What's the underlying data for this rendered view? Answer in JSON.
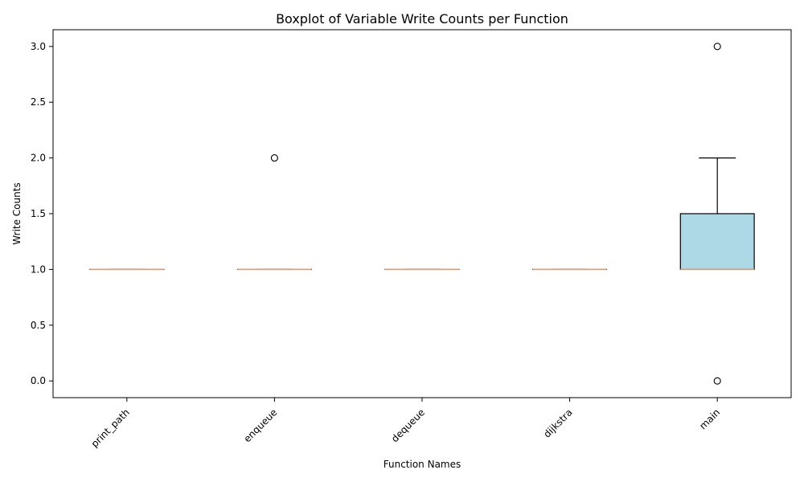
{
  "chart_data": {
    "type": "boxplot",
    "title": "Boxplot of Variable Write Counts per Function",
    "xlabel": "Function Names",
    "ylabel": "Write Counts",
    "ylim": [
      -0.15,
      3.15
    ],
    "yticks": [
      0.0,
      0.5,
      1.0,
      1.5,
      2.0,
      2.5,
      3.0
    ],
    "ytick_labels": [
      "0.0",
      "0.5",
      "1.0",
      "1.5",
      "2.0",
      "2.5",
      "3.0"
    ],
    "grid": false,
    "legend": "none",
    "box_color": "#add8e6",
    "median_color": "#e8a070",
    "edge_color": "#000000",
    "categories": [
      "print_path",
      "enqueue",
      "dequeue",
      "dijkstra",
      "main"
    ],
    "boxes": [
      {
        "category": "print_path",
        "whisker_low": 1,
        "q1": 1,
        "median": 1,
        "q3": 1,
        "whisker_high": 1,
        "outliers": []
      },
      {
        "category": "enqueue",
        "whisker_low": 1,
        "q1": 1,
        "median": 1,
        "q3": 1,
        "whisker_high": 1,
        "outliers": [
          2
        ]
      },
      {
        "category": "dequeue",
        "whisker_low": 1,
        "q1": 1,
        "median": 1,
        "q3": 1,
        "whisker_high": 1,
        "outliers": []
      },
      {
        "category": "dijkstra",
        "whisker_low": 1,
        "q1": 1,
        "median": 1,
        "q3": 1,
        "whisker_high": 1,
        "outliers": []
      },
      {
        "category": "main",
        "whisker_low": 1,
        "q1": 1,
        "median": 1,
        "q3": 1.5,
        "whisker_high": 2,
        "outliers": [
          3,
          0
        ]
      }
    ]
  }
}
